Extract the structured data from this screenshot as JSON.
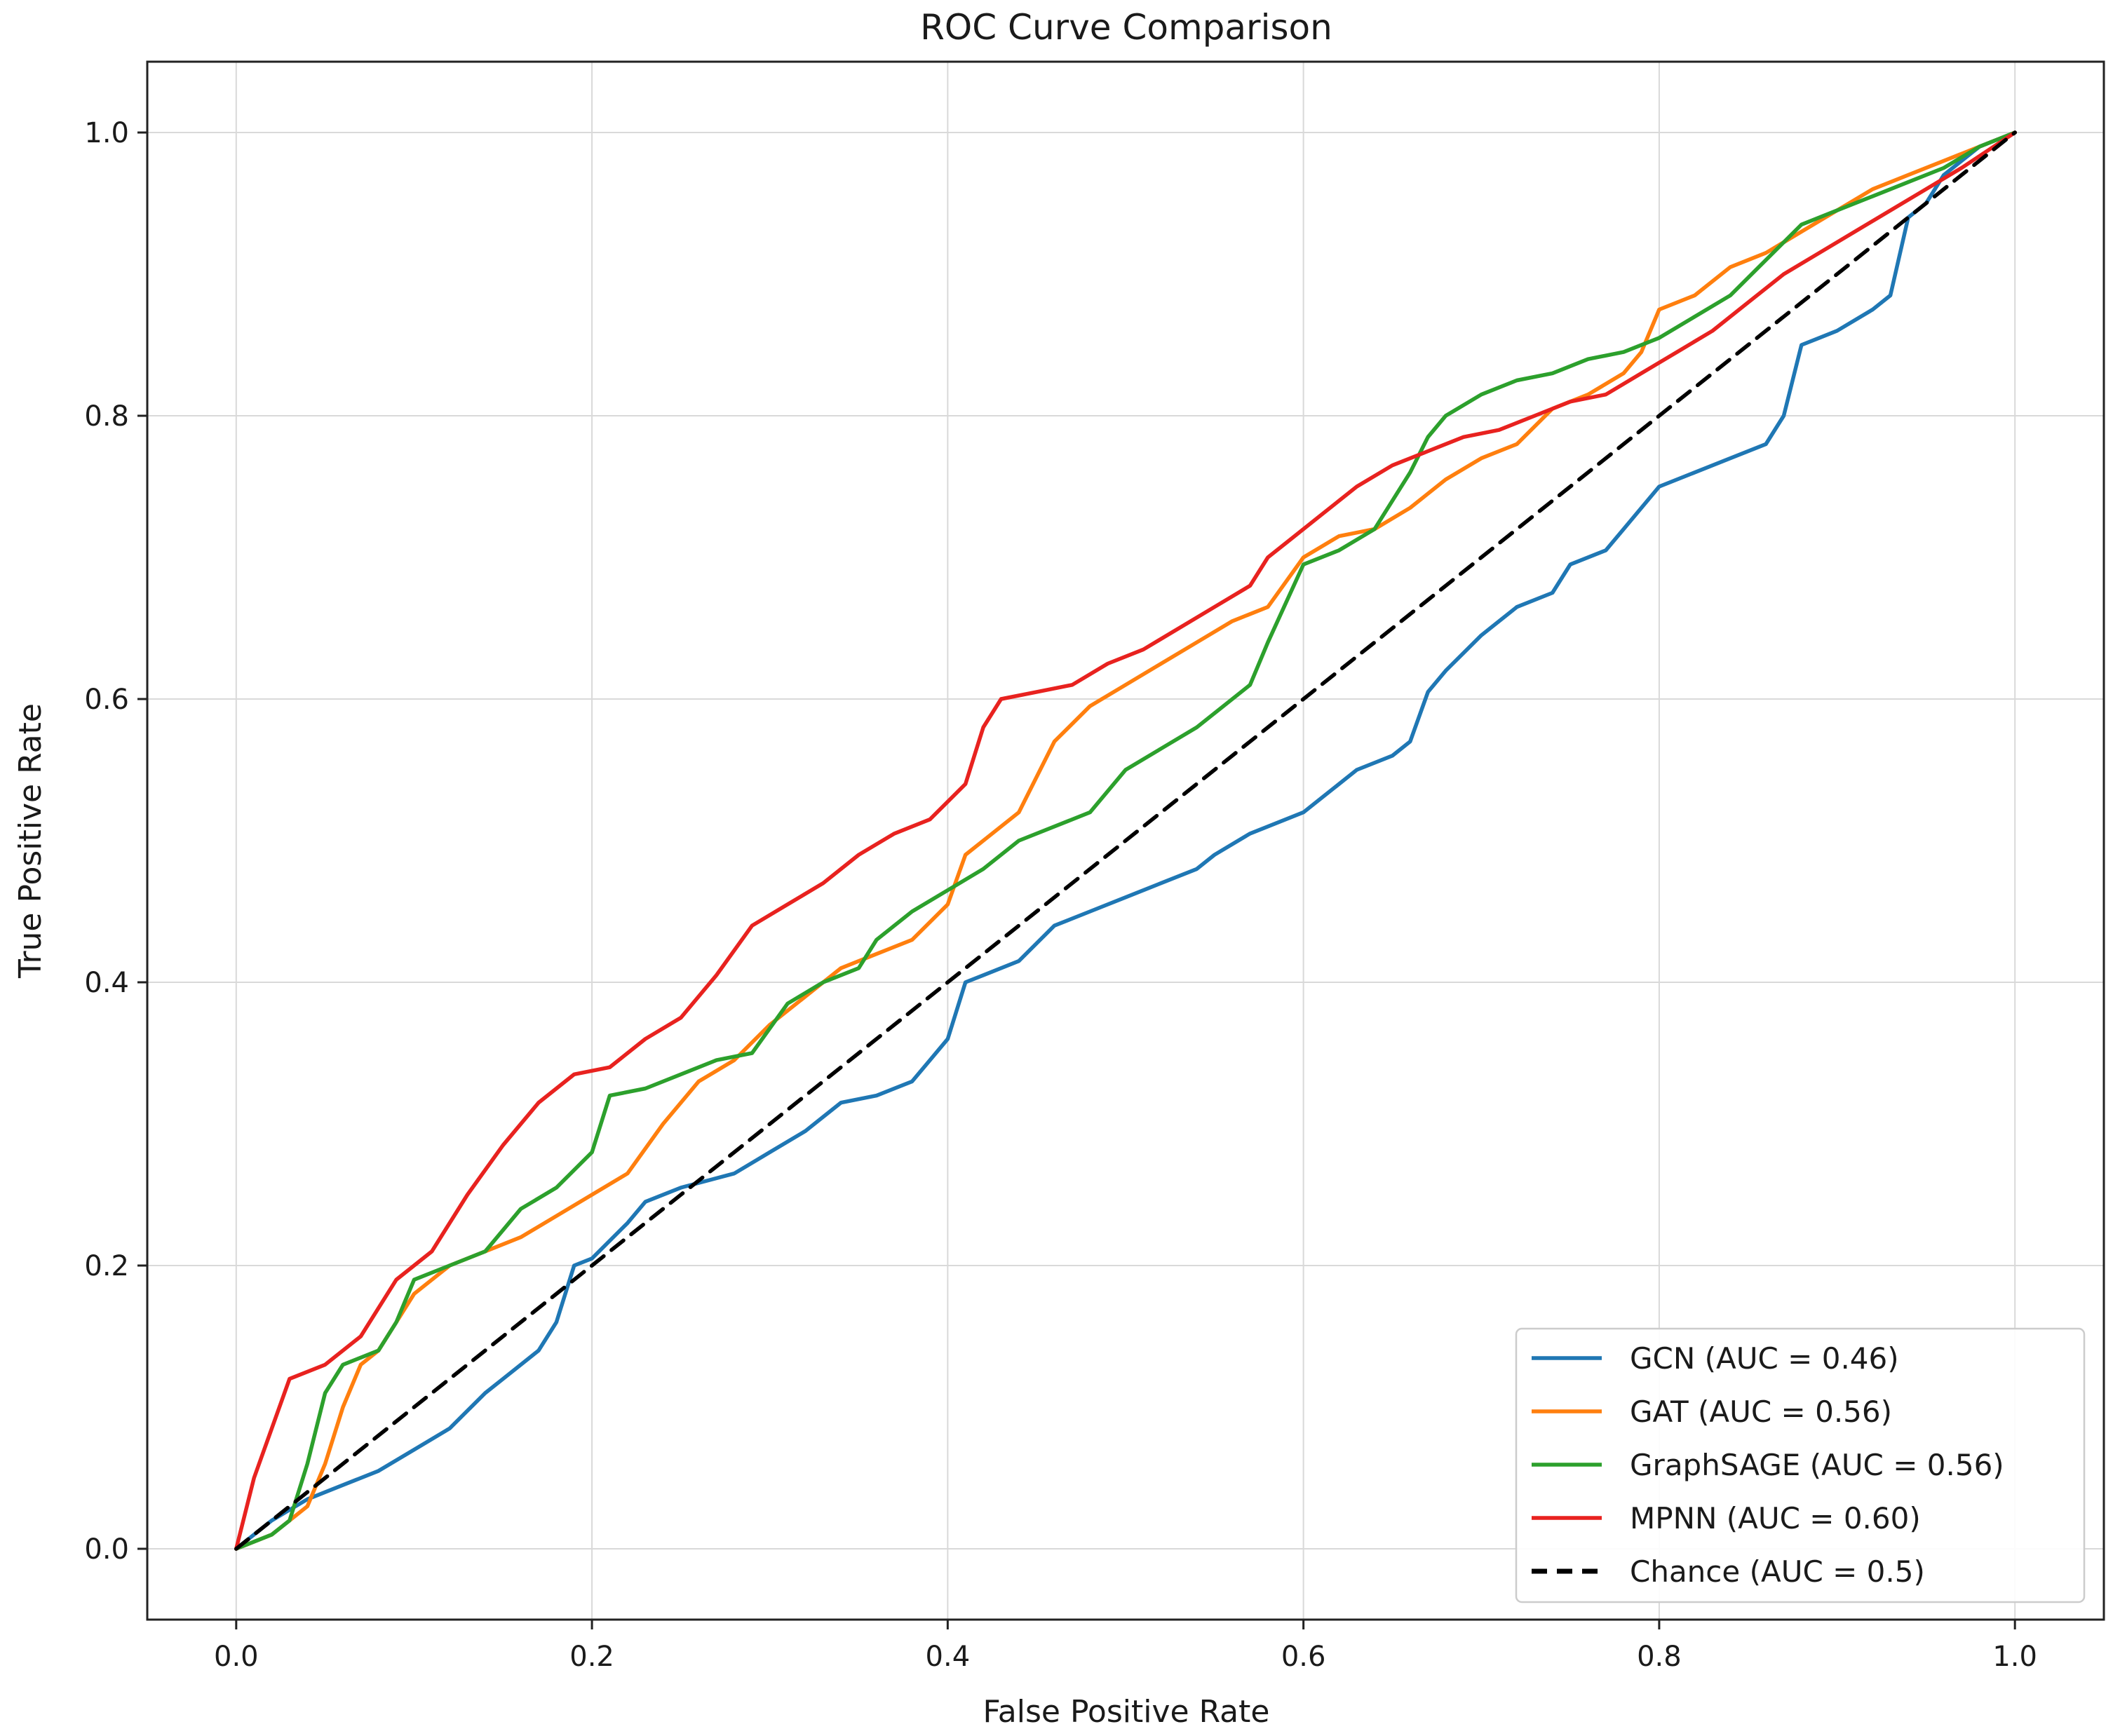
{
  "chart_data": {
    "type": "line",
    "title": "ROC Curve Comparison",
    "xlabel": "False Positive Rate",
    "ylabel": "True Positive Rate",
    "xlim": [
      -0.05,
      1.05
    ],
    "ylim": [
      -0.05,
      1.05
    ],
    "grid": true,
    "legend_position": "bottom-right",
    "xticks": [
      0.0,
      0.2,
      0.4,
      0.6,
      0.8,
      1.0
    ],
    "yticks": [
      0.0,
      0.2,
      0.4,
      0.6,
      0.8,
      1.0
    ],
    "xtick_labels": [
      "0.0",
      "0.2",
      "0.4",
      "0.6",
      "0.8",
      "1.0"
    ],
    "ytick_labels": [
      "0.0",
      "0.2",
      "0.4",
      "0.6",
      "0.8",
      "1.0"
    ],
    "series": [
      {
        "name": "GCN (AUC = 0.46)",
        "color": "#1f77b4",
        "dash": "solid",
        "x": [
          0.0,
          0.02,
          0.04,
          0.06,
          0.08,
          0.1,
          0.12,
          0.14,
          0.15,
          0.17,
          0.18,
          0.19,
          0.2,
          0.22,
          0.23,
          0.25,
          0.28,
          0.3,
          0.32,
          0.34,
          0.36,
          0.38,
          0.39,
          0.4,
          0.41,
          0.42,
          0.44,
          0.46,
          0.48,
          0.5,
          0.52,
          0.54,
          0.55,
          0.57,
          0.58,
          0.6,
          0.62,
          0.63,
          0.65,
          0.66,
          0.67,
          0.68,
          0.7,
          0.72,
          0.74,
          0.75,
          0.77,
          0.78,
          0.8,
          0.82,
          0.84,
          0.86,
          0.87,
          0.88,
          0.89,
          0.9,
          0.92,
          0.93,
          0.94,
          0.95,
          0.96,
          0.98,
          1.0
        ],
        "y": [
          0.0,
          0.02,
          0.035,
          0.045,
          0.055,
          0.07,
          0.085,
          0.11,
          0.12,
          0.14,
          0.16,
          0.2,
          0.205,
          0.23,
          0.245,
          0.255,
          0.265,
          0.28,
          0.295,
          0.315,
          0.32,
          0.33,
          0.345,
          0.36,
          0.4,
          0.405,
          0.415,
          0.44,
          0.45,
          0.46,
          0.47,
          0.48,
          0.49,
          0.505,
          0.51,
          0.52,
          0.54,
          0.55,
          0.56,
          0.57,
          0.605,
          0.62,
          0.645,
          0.665,
          0.675,
          0.695,
          0.705,
          0.72,
          0.75,
          0.76,
          0.77,
          0.78,
          0.8,
          0.85,
          0.855,
          0.86,
          0.875,
          0.885,
          0.94,
          0.95,
          0.97,
          0.99,
          1.0
        ]
      },
      {
        "name": "GAT (AUC = 0.56)",
        "color": "#ff7f0e",
        "dash": "solid",
        "x": [
          0.0,
          0.02,
          0.04,
          0.05,
          0.06,
          0.07,
          0.08,
          0.1,
          0.12,
          0.14,
          0.16,
          0.18,
          0.2,
          0.22,
          0.24,
          0.26,
          0.28,
          0.3,
          0.32,
          0.34,
          0.36,
          0.38,
          0.4,
          0.41,
          0.42,
          0.44,
          0.46,
          0.48,
          0.5,
          0.52,
          0.54,
          0.56,
          0.58,
          0.6,
          0.62,
          0.64,
          0.66,
          0.68,
          0.7,
          0.72,
          0.74,
          0.76,
          0.78,
          0.79,
          0.8,
          0.82,
          0.84,
          0.86,
          0.88,
          0.9,
          0.92,
          0.94,
          0.96,
          0.98,
          1.0
        ],
        "y": [
          0.0,
          0.01,
          0.03,
          0.06,
          0.1,
          0.13,
          0.14,
          0.18,
          0.2,
          0.21,
          0.22,
          0.235,
          0.25,
          0.265,
          0.3,
          0.33,
          0.345,
          0.37,
          0.39,
          0.41,
          0.42,
          0.43,
          0.455,
          0.49,
          0.5,
          0.52,
          0.57,
          0.595,
          0.61,
          0.625,
          0.64,
          0.655,
          0.665,
          0.7,
          0.715,
          0.72,
          0.735,
          0.755,
          0.77,
          0.78,
          0.805,
          0.815,
          0.83,
          0.845,
          0.875,
          0.885,
          0.905,
          0.915,
          0.93,
          0.945,
          0.96,
          0.97,
          0.98,
          0.99,
          1.0
        ]
      },
      {
        "name": "GraphSAGE (AUC = 0.56)",
        "color": "#2ca02c",
        "dash": "solid",
        "x": [
          0.0,
          0.02,
          0.03,
          0.04,
          0.05,
          0.06,
          0.07,
          0.08,
          0.09,
          0.1,
          0.12,
          0.14,
          0.16,
          0.18,
          0.2,
          0.21,
          0.23,
          0.25,
          0.27,
          0.29,
          0.31,
          0.33,
          0.35,
          0.36,
          0.38,
          0.4,
          0.42,
          0.44,
          0.46,
          0.48,
          0.5,
          0.52,
          0.54,
          0.56,
          0.57,
          0.58,
          0.6,
          0.62,
          0.64,
          0.66,
          0.67,
          0.68,
          0.7,
          0.72,
          0.74,
          0.76,
          0.78,
          0.8,
          0.82,
          0.84,
          0.86,
          0.88,
          0.9,
          0.92,
          0.94,
          0.96,
          0.98,
          1.0
        ],
        "y": [
          0.0,
          0.01,
          0.02,
          0.06,
          0.11,
          0.13,
          0.135,
          0.14,
          0.16,
          0.19,
          0.2,
          0.21,
          0.24,
          0.255,
          0.28,
          0.32,
          0.325,
          0.335,
          0.345,
          0.35,
          0.385,
          0.4,
          0.41,
          0.43,
          0.45,
          0.465,
          0.48,
          0.5,
          0.51,
          0.52,
          0.55,
          0.565,
          0.58,
          0.6,
          0.61,
          0.64,
          0.695,
          0.705,
          0.72,
          0.76,
          0.785,
          0.8,
          0.815,
          0.825,
          0.83,
          0.84,
          0.845,
          0.855,
          0.87,
          0.885,
          0.91,
          0.935,
          0.945,
          0.955,
          0.965,
          0.975,
          0.99,
          1.0
        ]
      },
      {
        "name": "MPNN (AUC = 0.60)",
        "color": "#e8221f",
        "dash": "solid",
        "x": [
          0.0,
          0.01,
          0.03,
          0.05,
          0.07,
          0.09,
          0.11,
          0.13,
          0.15,
          0.17,
          0.19,
          0.21,
          0.23,
          0.25,
          0.27,
          0.29,
          0.31,
          0.33,
          0.35,
          0.37,
          0.39,
          0.41,
          0.42,
          0.43,
          0.45,
          0.47,
          0.49,
          0.51,
          0.53,
          0.55,
          0.57,
          0.58,
          0.59,
          0.61,
          0.63,
          0.65,
          0.67,
          0.69,
          0.71,
          0.73,
          0.75,
          0.77,
          0.79,
          0.81,
          0.83,
          0.85,
          0.87,
          0.89,
          0.91,
          0.93,
          0.95,
          0.97,
          1.0
        ],
        "y": [
          0.0,
          0.05,
          0.12,
          0.13,
          0.15,
          0.19,
          0.21,
          0.25,
          0.285,
          0.315,
          0.335,
          0.34,
          0.36,
          0.375,
          0.405,
          0.44,
          0.455,
          0.47,
          0.49,
          0.505,
          0.515,
          0.54,
          0.58,
          0.6,
          0.605,
          0.61,
          0.625,
          0.635,
          0.65,
          0.665,
          0.68,
          0.7,
          0.71,
          0.73,
          0.75,
          0.765,
          0.775,
          0.785,
          0.79,
          0.8,
          0.81,
          0.815,
          0.83,
          0.845,
          0.86,
          0.88,
          0.9,
          0.915,
          0.93,
          0.945,
          0.96,
          0.975,
          1.0
        ]
      },
      {
        "name": "Chance (AUC = 0.5)",
        "color": "#000000",
        "dash": "dashed",
        "x": [
          0.0,
          1.0
        ],
        "y": [
          0.0,
          1.0
        ]
      }
    ]
  }
}
